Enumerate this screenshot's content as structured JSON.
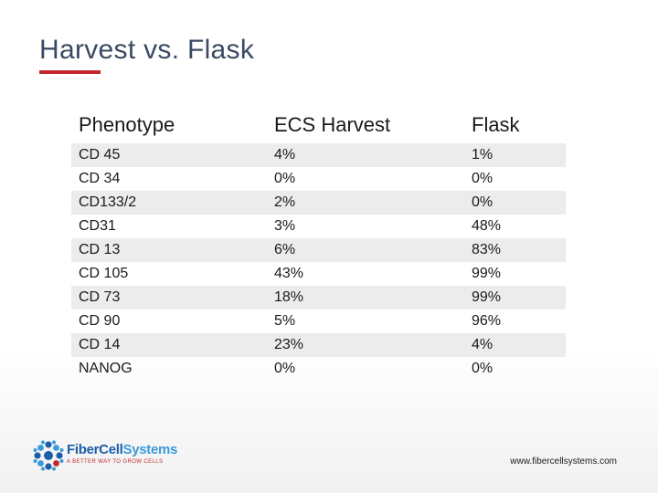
{
  "slide": {
    "title": "Harvest vs. Flask"
  },
  "table": {
    "headers": [
      "Phenotype",
      "ECS Harvest",
      "Flask"
    ],
    "rows": [
      {
        "phenotype": "CD 45",
        "ecs": "4%",
        "flask": "1%"
      },
      {
        "phenotype": "CD 34",
        "ecs": "0%",
        "flask": "0%"
      },
      {
        "phenotype": "CD133/2",
        "ecs": "2%",
        "flask": "0%"
      },
      {
        "phenotype": "CD31",
        "ecs": "3%",
        "flask": "48%"
      },
      {
        "phenotype": "CD 13",
        "ecs": "6%",
        "flask": "83%"
      },
      {
        "phenotype": "CD 105",
        "ecs": "43%",
        "flask": "99%"
      },
      {
        "phenotype": "CD 73",
        "ecs": "18%",
        "flask": "99%"
      },
      {
        "phenotype": "CD 90",
        "ecs": "5%",
        "flask": "96%"
      },
      {
        "phenotype": "CD 14",
        "ecs": "23%",
        "flask": "4%"
      },
      {
        "phenotype": "NANOG",
        "ecs": "0%",
        "flask": "0%"
      }
    ]
  },
  "footer": {
    "logo_part1": "FiberCell",
    "logo_part2": "Systems",
    "logo_tagline": "A BETTER WAY TO GROW CELLS",
    "url": "www.fibercellsystems.com"
  },
  "colors": {
    "title": "#3a4a64",
    "accent_red": "#c2272d",
    "row_shade": "#ececec",
    "logo_dark_blue": "#1c5ea8",
    "logo_light_blue": "#3b9ad9"
  },
  "icons": [
    "fibercell-logo-icon"
  ]
}
